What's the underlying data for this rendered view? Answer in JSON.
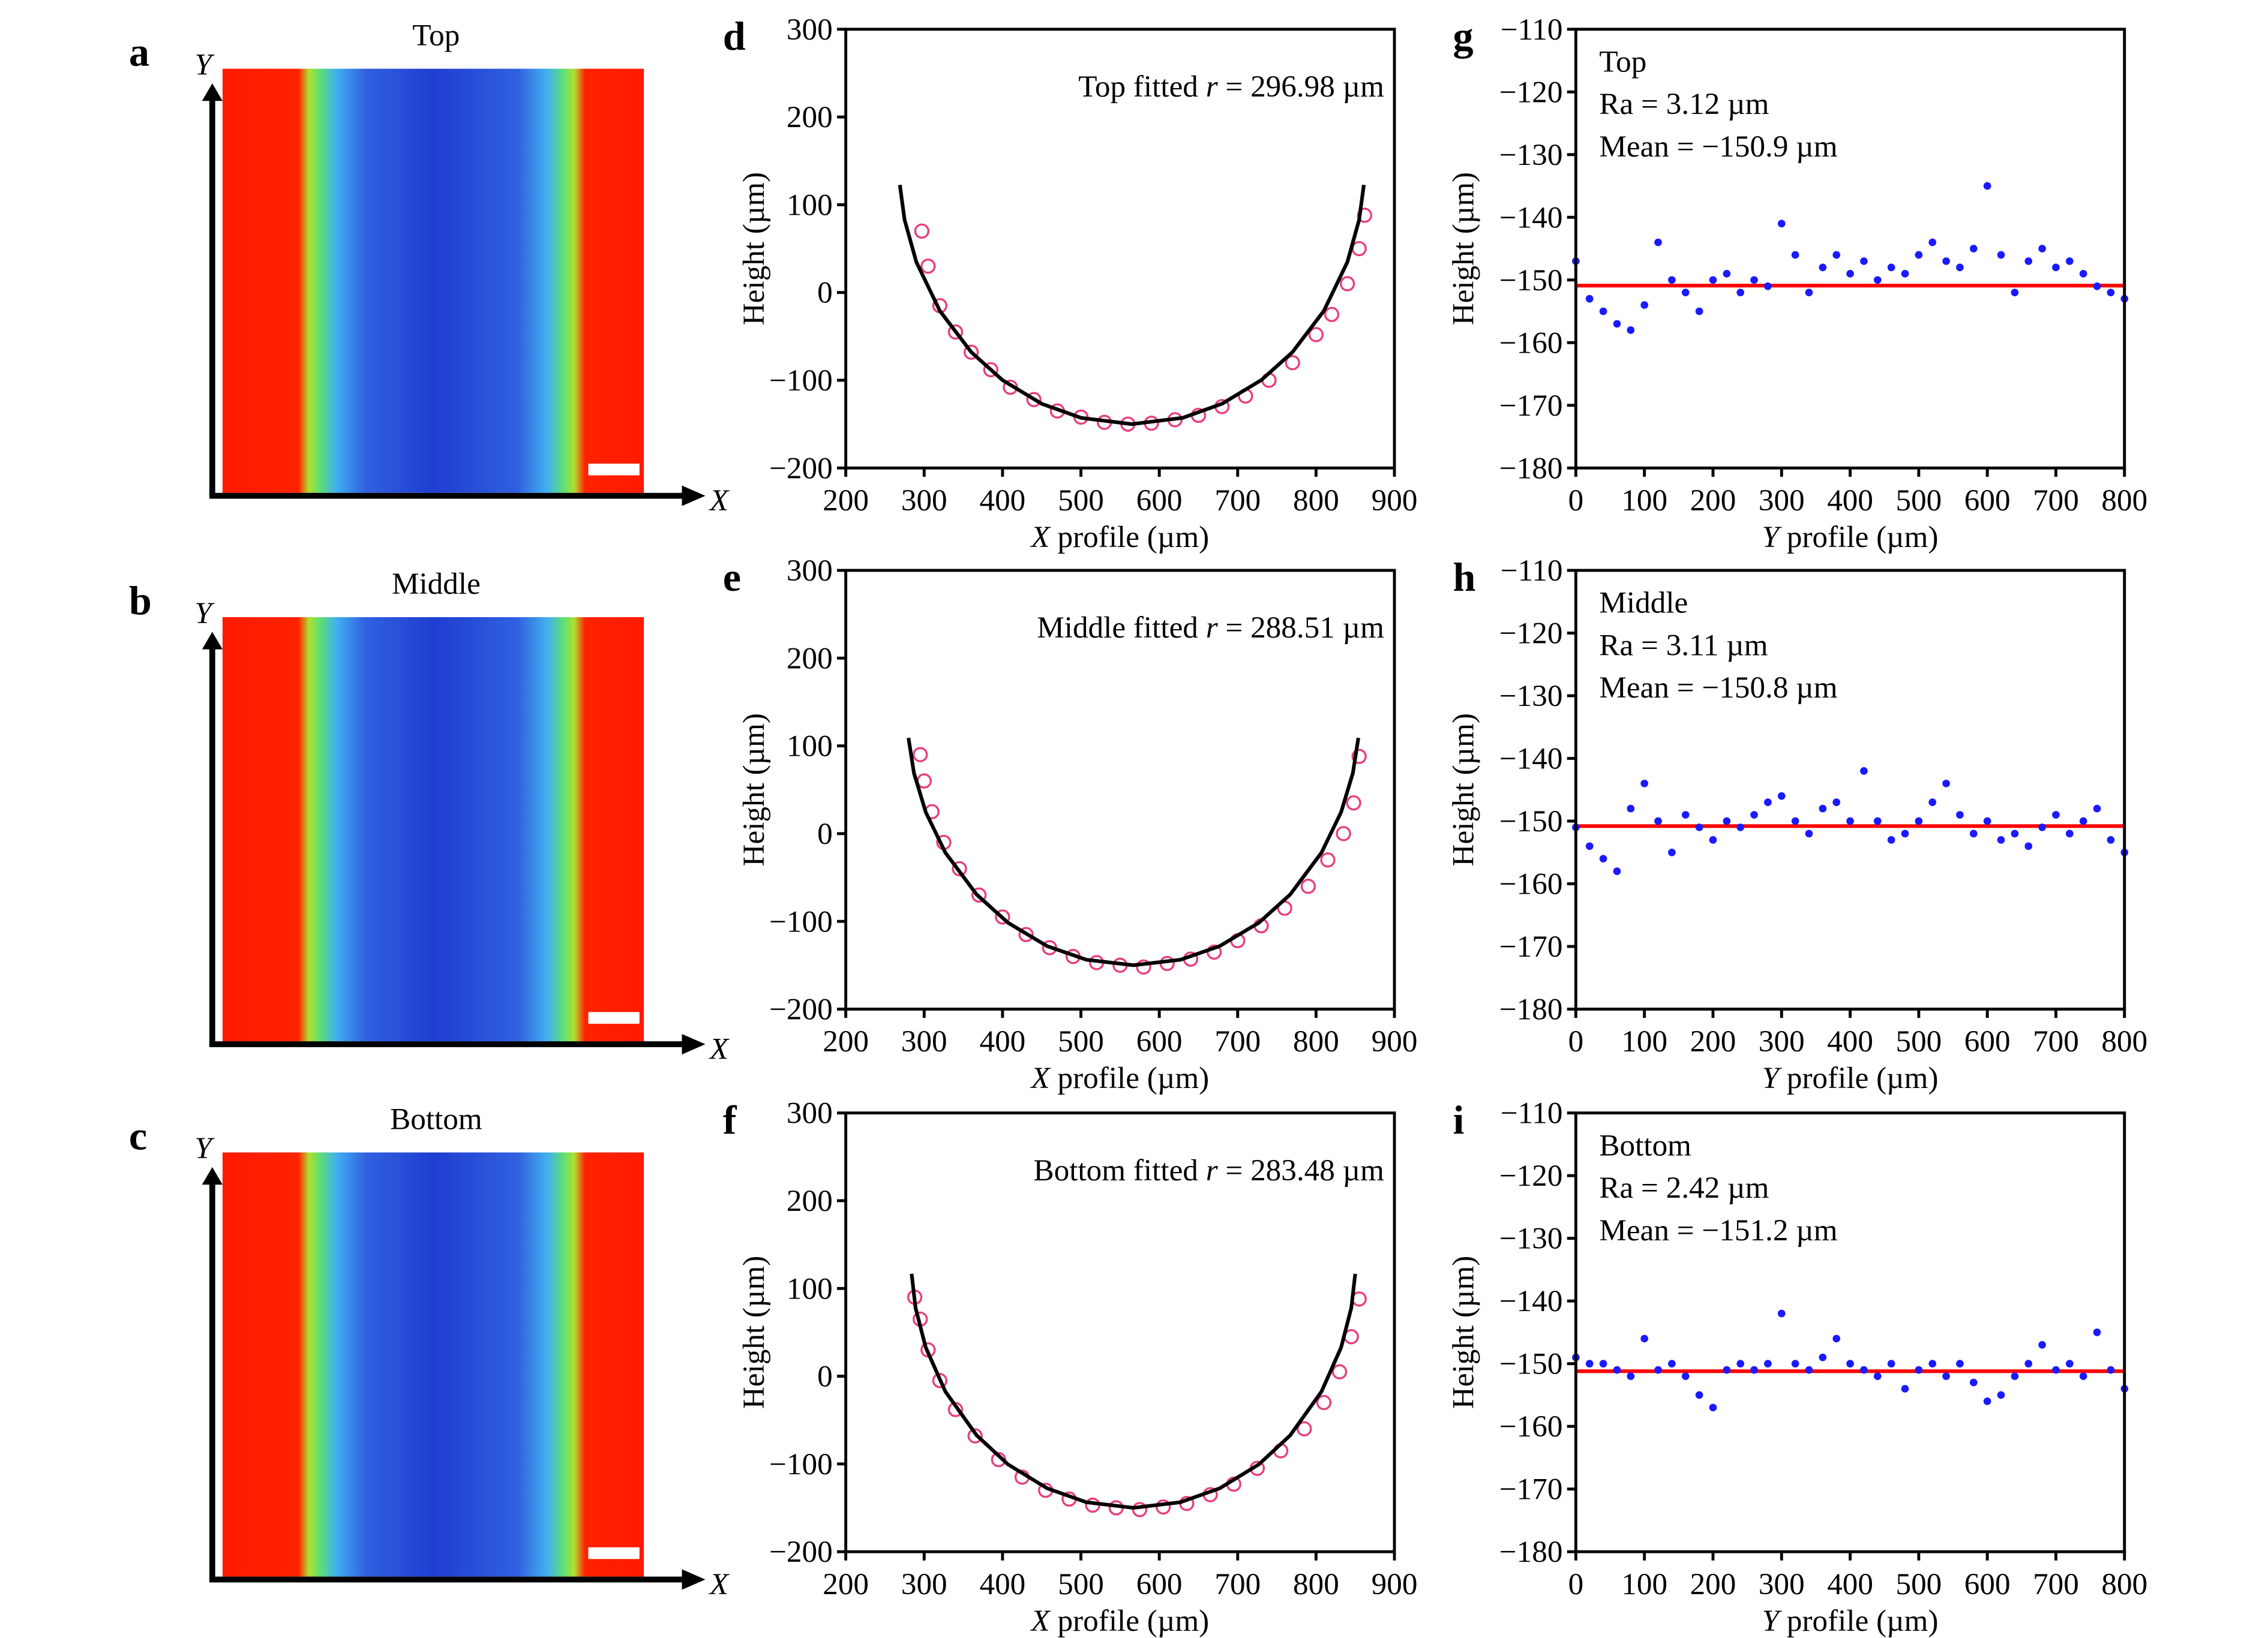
{
  "chart_data": [
    {
      "type": "image",
      "panel": "a",
      "title": "Top",
      "xlabel": "X",
      "ylabel": "Y"
    },
    {
      "type": "image",
      "panel": "b",
      "title": "Middle",
      "xlabel": "X",
      "ylabel": "Y"
    },
    {
      "type": "image",
      "panel": "c",
      "title": "Bottom",
      "xlabel": "X",
      "ylabel": "Y"
    },
    {
      "type": "scatter",
      "panel": "d",
      "annotation": [
        "Top fitted ",
        "r",
        " = 296.98 µm"
      ],
      "xlabel": [
        "X",
        " profile (µm)"
      ],
      "ylabel": "Height (µm)",
      "xlim": [
        200,
        900
      ],
      "ylim": [
        -200,
        300
      ],
      "xticks": [
        200,
        300,
        400,
        500,
        600,
        700,
        800,
        900
      ],
      "yticks": [
        {
          "value": -200,
          "label": "−200"
        },
        {
          "value": -100,
          "label": "−100"
        },
        0,
        100,
        200,
        300
      ],
      "series": [
        {
          "type": "scatter",
          "color": "#e8407e",
          "x": [
            297,
            305,
            320,
            340,
            360,
            385,
            410,
            440,
            470,
            500,
            530,
            560,
            590,
            620,
            650,
            680,
            710,
            740,
            770,
            800,
            820,
            840,
            855,
            862
          ],
          "values": [
            70,
            30,
            -15,
            -45,
            -68,
            -88,
            -108,
            -122,
            -135,
            -142,
            -148,
            -150,
            -149,
            -145,
            -140,
            -130,
            -118,
            -100,
            -80,
            -48,
            -25,
            10,
            50,
            88
          ]
        },
        {
          "type": "line",
          "color": "#000000",
          "x": [
            269,
            275,
            290,
            320,
            360,
            400,
            450,
            500,
            565,
            630,
            680,
            730,
            770,
            810,
            840,
            855,
            861
          ],
          "values": [
            122.6,
            82.9,
            34.8,
            -20.9,
            -67.9,
            -99.9,
            -126.8,
            -142.8,
            -150,
            -142.8,
            -126.8,
            -99.9,
            -67.9,
            -20.9,
            34.8,
            82.9,
            122.6
          ]
        }
      ]
    },
    {
      "type": "scatter",
      "panel": "e",
      "annotation": [
        "Middle fitted ",
        "r",
        " = 288.51 µm"
      ],
      "xlabel": [
        "X",
        " profile (µm)"
      ],
      "ylabel": "Height (µm)",
      "xlim": [
        200,
        900
      ],
      "ylim": [
        -200,
        300
      ],
      "xticks": [
        200,
        300,
        400,
        500,
        600,
        700,
        800,
        900
      ],
      "yticks": [
        {
          "value": -200,
          "label": "−200"
        },
        {
          "value": -100,
          "label": "−100"
        },
        0,
        100,
        200,
        300
      ],
      "series": [
        {
          "type": "scatter",
          "color": "#e8407e",
          "x": [
            295,
            300,
            310,
            325,
            345,
            370,
            400,
            430,
            460,
            490,
            520,
            550,
            580,
            610,
            640,
            670,
            700,
            730,
            760,
            790,
            815,
            835,
            848,
            855
          ],
          "values": [
            90,
            60,
            25,
            -10,
            -40,
            -70,
            -95,
            -115,
            -130,
            -140,
            -147,
            -150,
            -152,
            -148,
            -143,
            -135,
            -122,
            -105,
            -85,
            -60,
            -30,
            0,
            35,
            88
          ]
        },
        {
          "type": "line",
          "color": "#000000",
          "x": [
            280,
            287,
            302,
            327,
            367,
            407,
            457,
            507,
            567,
            627,
            677,
            727,
            767,
            807,
            832,
            847,
            854
          ],
          "values": [
            109.1,
            69.0,
            24.5,
            -21.6,
            -69.4,
            -101.6,
            -128.2,
            -143.7,
            -150,
            -143.7,
            -128.2,
            -101.6,
            -69.4,
            -21.6,
            24.5,
            69.0,
            109.1
          ]
        }
      ]
    },
    {
      "type": "scatter",
      "panel": "f",
      "annotation": [
        "Bottom fitted ",
        "r",
        " = 283.48 µm"
      ],
      "xlabel": [
        "X",
        " profile (µm)"
      ],
      "ylabel": "Height (µm)",
      "xlim": [
        200,
        900
      ],
      "ylim": [
        -200,
        300
      ],
      "xticks": [
        200,
        300,
        400,
        500,
        600,
        700,
        800,
        900
      ],
      "yticks": [
        {
          "value": -200,
          "label": "−200"
        },
        {
          "value": -100,
          "label": "−100"
        },
        0,
        100,
        200,
        300
      ],
      "series": [
        {
          "type": "scatter",
          "color": "#e8407e",
          "x": [
            288,
            295,
            305,
            320,
            340,
            365,
            395,
            425,
            455,
            485,
            515,
            545,
            575,
            605,
            635,
            665,
            695,
            725,
            755,
            785,
            810,
            830,
            845,
            855
          ],
          "values": [
            90,
            65,
            30,
            -5,
            -38,
            -68,
            -95,
            -115,
            -130,
            -140,
            -147,
            -150,
            -152,
            -149,
            -145,
            -135,
            -123,
            -105,
            -85,
            -60,
            -30,
            5,
            45,
            88
          ]
        },
        {
          "type": "line",
          "color": "#000000",
          "x": [
            284,
            289,
            302,
            327,
            367,
            407,
            457,
            507,
            567,
            627,
            677,
            727,
            767,
            807,
            832,
            845,
            850
          ],
          "values": [
            116.7,
            77.9,
            32.8,
            -17.4,
            -67.4,
            -100.5,
            -127.8,
            -143.6,
            -150,
            -143.6,
            -127.8,
            -100.5,
            -67.4,
            -17.4,
            32.8,
            77.9,
            116.7
          ]
        }
      ]
    },
    {
      "type": "scatter",
      "panel": "g",
      "annotation_lines": [
        "Top",
        "Ra = 3.12 µm",
        "Mean = −150.9 µm"
      ],
      "mean_line": -150.9,
      "mean_line_color": "#ff0000",
      "xlabel": [
        "Y",
        " profile (µm)"
      ],
      "ylabel": "Height (µm)",
      "xlim": [
        0,
        800
      ],
      "ylim": [
        -180,
        -110
      ],
      "xticks": [
        0,
        100,
        200,
        300,
        400,
        500,
        600,
        700,
        800
      ],
      "yticks": [
        {
          "value": -180,
          "label": "−180"
        },
        {
          "value": -170,
          "label": "−170"
        },
        {
          "value": -160,
          "label": "−160"
        },
        {
          "value": -150,
          "label": "−150"
        },
        {
          "value": -140,
          "label": "−140"
        },
        {
          "value": -130,
          "label": "−130"
        },
        {
          "value": -120,
          "label": "−120"
        },
        {
          "value": -110,
          "label": "−110"
        }
      ],
      "series": [
        {
          "type": "scatter",
          "color": "#1a1aff",
          "x": [
            0,
            20,
            40,
            60,
            80,
            100,
            120,
            140,
            160,
            180,
            200,
            220,
            240,
            260,
            280,
            300,
            320,
            340,
            360,
            380,
            400,
            420,
            440,
            460,
            480,
            500,
            520,
            540,
            560,
            580,
            600,
            620,
            640,
            660,
            680,
            700,
            720,
            740,
            760,
            780,
            800
          ],
          "values": [
            -147,
            -153,
            -155,
            -157,
            -158,
            -154,
            -144,
            -150,
            -152,
            -155,
            -150,
            -149,
            -152,
            -150,
            -151,
            -141,
            -146,
            -152,
            -148,
            -146,
            -149,
            -147,
            -150,
            -148,
            -149,
            -146,
            -144,
            -147,
            -148,
            -145,
            -135,
            -146,
            -152,
            -147,
            -145,
            -148,
            -147,
            -149,
            -151,
            -152,
            -153
          ]
        }
      ]
    },
    {
      "type": "scatter",
      "panel": "h",
      "annotation_lines": [
        "Middle",
        "Ra = 3.11 µm",
        "Mean = −150.8 µm"
      ],
      "mean_line": -150.8,
      "mean_line_color": "#ff0000",
      "xlabel": [
        "Y",
        " profile (µm)"
      ],
      "ylabel": "Height (µm)",
      "xlim": [
        0,
        800
      ],
      "ylim": [
        -180,
        -110
      ],
      "xticks": [
        0,
        100,
        200,
        300,
        400,
        500,
        600,
        700,
        800
      ],
      "yticks": [
        {
          "value": -180,
          "label": "−180"
        },
        {
          "value": -170,
          "label": "−170"
        },
        {
          "value": -160,
          "label": "−160"
        },
        {
          "value": -150,
          "label": "−150"
        },
        {
          "value": -140,
          "label": "−140"
        },
        {
          "value": -130,
          "label": "−130"
        },
        {
          "value": -120,
          "label": "−120"
        },
        {
          "value": -110,
          "label": "−110"
        }
      ],
      "series": [
        {
          "type": "scatter",
          "color": "#1a1aff",
          "x": [
            0,
            20,
            40,
            60,
            80,
            100,
            120,
            140,
            160,
            180,
            200,
            220,
            240,
            260,
            280,
            300,
            320,
            340,
            360,
            380,
            400,
            420,
            440,
            460,
            480,
            500,
            520,
            540,
            560,
            580,
            600,
            620,
            640,
            660,
            680,
            700,
            720,
            740,
            760,
            780,
            800
          ],
          "values": [
            -151,
            -154,
            -156,
            -158,
            -148,
            -144,
            -150,
            -155,
            -149,
            -151,
            -153,
            -150,
            -151,
            -149,
            -147,
            -146,
            -150,
            -152,
            -148,
            -147,
            -150,
            -142,
            -150,
            -153,
            -152,
            -150,
            -147,
            -144,
            -149,
            -152,
            -150,
            -153,
            -152,
            -154,
            -151,
            -149,
            -152,
            -150,
            -148,
            -153,
            -155
          ]
        }
      ]
    },
    {
      "type": "scatter",
      "panel": "i",
      "annotation_lines": [
        "Bottom",
        "Ra = 2.42 µm",
        "Mean = −151.2 µm"
      ],
      "mean_line": -151.2,
      "mean_line_color": "#ff0000",
      "xlabel": [
        "Y",
        " profile (µm)"
      ],
      "ylabel": "Height (µm)",
      "xlim": [
        0,
        800
      ],
      "ylim": [
        -180,
        -110
      ],
      "xticks": [
        0,
        100,
        200,
        300,
        400,
        500,
        600,
        700,
        800
      ],
      "yticks": [
        {
          "value": -180,
          "label": "−180"
        },
        {
          "value": -170,
          "label": "−170"
        },
        {
          "value": -160,
          "label": "−160"
        },
        {
          "value": -150,
          "label": "−150"
        },
        {
          "value": -140,
          "label": "−140"
        },
        {
          "value": -130,
          "label": "−130"
        },
        {
          "value": -120,
          "label": "−120"
        },
        {
          "value": -110,
          "label": "−110"
        }
      ],
      "series": [
        {
          "type": "scatter",
          "color": "#1a1aff",
          "x": [
            0,
            20,
            40,
            60,
            80,
            100,
            120,
            140,
            160,
            180,
            200,
            220,
            240,
            260,
            280,
            300,
            320,
            340,
            360,
            380,
            400,
            420,
            440,
            460,
            480,
            500,
            520,
            540,
            560,
            580,
            600,
            620,
            640,
            660,
            680,
            700,
            720,
            740,
            760,
            780,
            800
          ],
          "values": [
            -149,
            -150,
            -150,
            -151,
            -152,
            -146,
            -151,
            -150,
            -152,
            -155,
            -157,
            -151,
            -150,
            -151,
            -150,
            -142,
            -150,
            -151,
            -149,
            -146,
            -150,
            -151,
            -152,
            -150,
            -154,
            -151,
            -150,
            -152,
            -150,
            -153,
            -156,
            -155,
            -152,
            -150,
            -147,
            -151,
            -150,
            -152,
            -145,
            -151,
            -154
          ]
        }
      ]
    }
  ]
}
